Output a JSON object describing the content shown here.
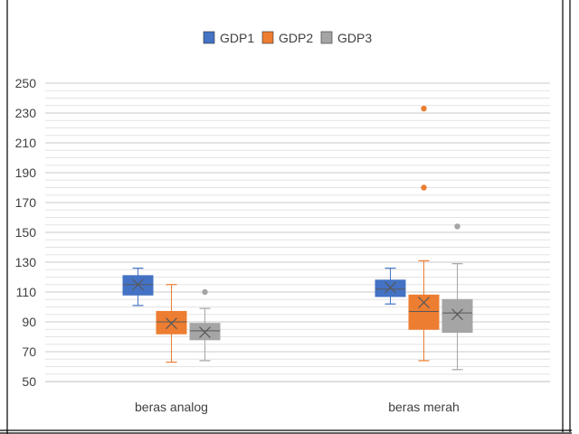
{
  "chart_data": {
    "type": "box",
    "title": "",
    "xlabel": "",
    "ylabel": "",
    "ylim": [
      50,
      250
    ],
    "yticks": [
      50,
      70,
      90,
      110,
      130,
      150,
      170,
      190,
      210,
      230,
      250
    ],
    "grid": true,
    "legend_position": "top",
    "categories": [
      "beras analog",
      "beras merah"
    ],
    "series": [
      {
        "name": "GDP1",
        "color": "#4472C4",
        "boxes": [
          {
            "min": 101,
            "q1": 108,
            "median": 115,
            "q3": 121,
            "max": 126,
            "mean": 115,
            "outliers": []
          },
          {
            "min": 102,
            "q1": 107,
            "median": 112,
            "q3": 118,
            "max": 126,
            "mean": 113,
            "outliers": []
          }
        ]
      },
      {
        "name": "GDP2",
        "color": "#ED7D31",
        "boxes": [
          {
            "min": 63,
            "q1": 82,
            "median": 90,
            "q3": 97,
            "max": 115,
            "mean": 89,
            "outliers": []
          },
          {
            "min": 64,
            "q1": 85,
            "median": 97,
            "q3": 108,
            "max": 131,
            "mean": 103,
            "outliers": [
              180,
              233
            ]
          }
        ]
      },
      {
        "name": "GDP3",
        "color": "#A5A5A5",
        "boxes": [
          {
            "min": 64,
            "q1": 78,
            "median": 84,
            "q3": 89,
            "max": 99,
            "mean": 83,
            "outliers": [
              110
            ]
          },
          {
            "min": 58,
            "q1": 83,
            "median": 96,
            "q3": 105,
            "max": 129,
            "mean": 95,
            "outliers": [
              154
            ]
          }
        ]
      }
    ]
  }
}
